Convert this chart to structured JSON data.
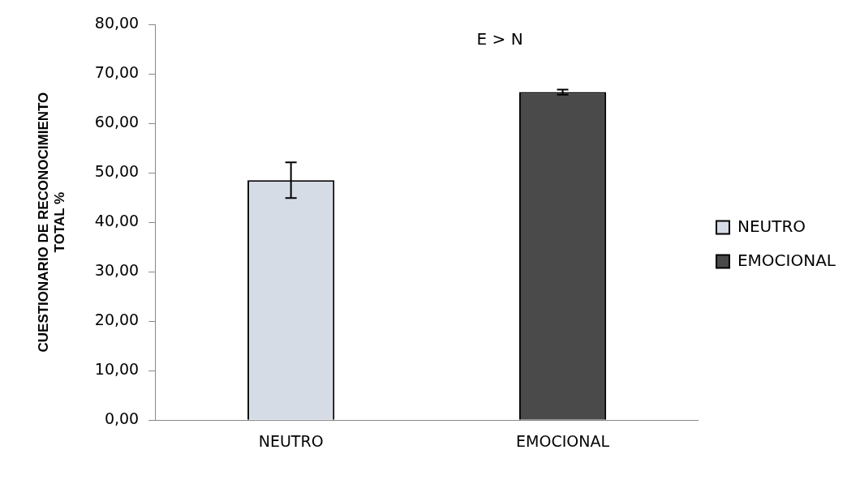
{
  "chart_data": {
    "type": "bar",
    "ylabel": "CUESTIONARIO DE RECONOCIMIENTO TOTAL %",
    "categories": [
      "NEUTRO",
      "EMOCIONAL"
    ],
    "series": [
      {
        "name": "NEUTRO",
        "color": "#d6dce6",
        "values": [
          48.5,
          null
        ],
        "errors": [
          3.6,
          null
        ]
      },
      {
        "name": "EMOCIONAL",
        "color": "#4a4a4a",
        "values": [
          null,
          66.3
        ],
        "errors": [
          null,
          0.5
        ]
      }
    ],
    "ylim": [
      0,
      80
    ],
    "yticks": [
      {
        "value": 0,
        "label": "0,00"
      },
      {
        "value": 10,
        "label": "10,00"
      },
      {
        "value": 20,
        "label": "20,00"
      },
      {
        "value": 30,
        "label": "30,00"
      },
      {
        "value": 40,
        "label": "40,00"
      },
      {
        "value": 50,
        "label": "50,00"
      },
      {
        "value": 60,
        "label": "60,00"
      },
      {
        "value": 70,
        "label": "70,00"
      },
      {
        "value": 80,
        "label": "80,00"
      }
    ],
    "annotations": [
      "E > N"
    ],
    "grid": false,
    "legend": "right"
  }
}
